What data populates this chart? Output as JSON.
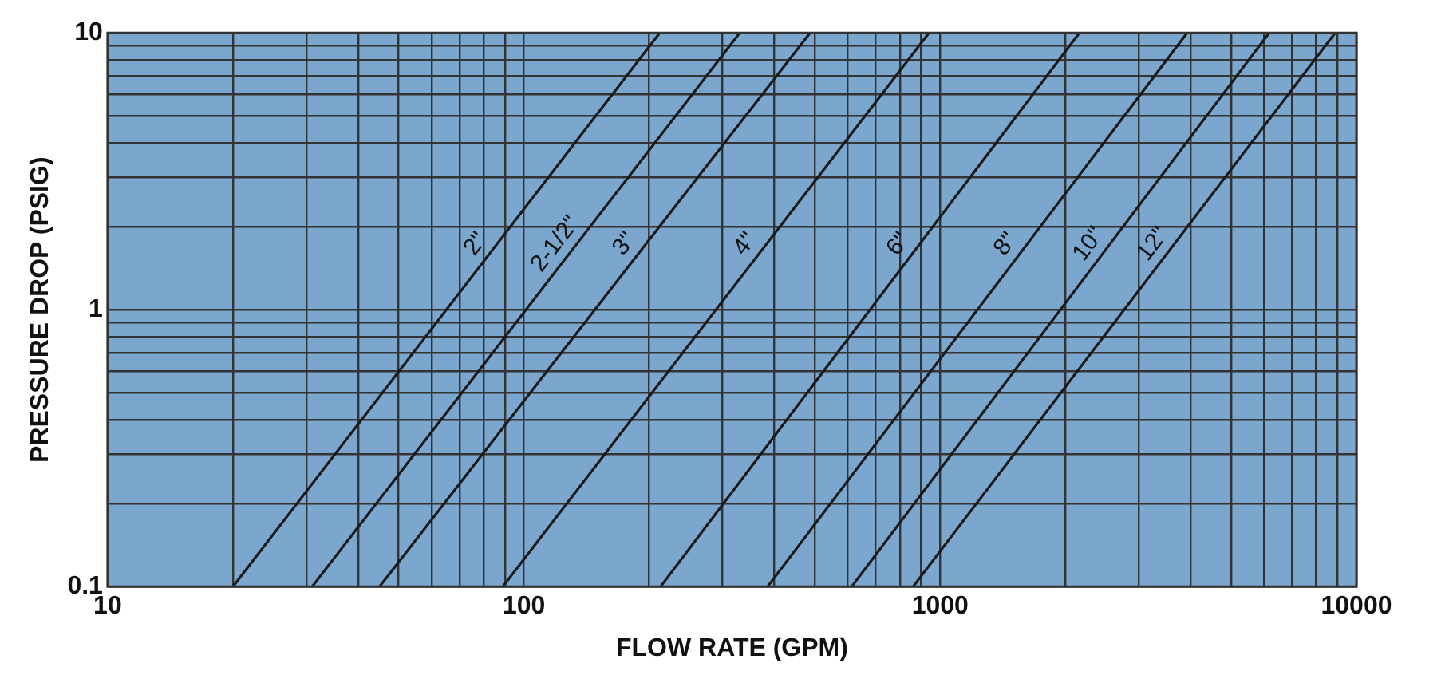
{
  "chart_data": {
    "type": "line",
    "xlabel": "FLOW RATE (GPM)",
    "ylabel": "PRESSURE DROP (PSIG)",
    "log": "xy",
    "grid": true,
    "legend": false,
    "marker": "none",
    "line_style": "solid",
    "xlim": [
      10,
      10000
    ],
    "ylim": [
      0.1,
      10
    ],
    "xticks": [
      10,
      {
        "value": 20,
        "label": null
      },
      {
        "value": 30,
        "label": null
      },
      {
        "value": 40,
        "label": null
      },
      {
        "value": 50,
        "label": null
      },
      {
        "value": 60,
        "label": null
      },
      {
        "value": 70,
        "label": null
      },
      {
        "value": 80,
        "label": null
      },
      {
        "value": 90,
        "label": null
      },
      100,
      {
        "value": 200,
        "label": null
      },
      {
        "value": 300,
        "label": null
      },
      {
        "value": 400,
        "label": null
      },
      {
        "value": 500,
        "label": null
      },
      {
        "value": 600,
        "label": null
      },
      {
        "value": 700,
        "label": null
      },
      {
        "value": 800,
        "label": null
      },
      {
        "value": 900,
        "label": null
      },
      1000,
      {
        "value": 2000,
        "label": null
      },
      {
        "value": 3000,
        "label": null
      },
      {
        "value": 4000,
        "label": null
      },
      {
        "value": 5000,
        "label": null
      },
      {
        "value": 6000,
        "label": null
      },
      {
        "value": 7000,
        "label": null
      },
      {
        "value": 8000,
        "label": null
      },
      {
        "value": 9000,
        "label": null
      },
      10000
    ],
    "yticks": [
      0.1,
      {
        "value": 0.2,
        "label": null
      },
      {
        "value": 0.3,
        "label": null
      },
      {
        "value": 0.4,
        "label": null
      },
      {
        "value": 0.5,
        "label": null
      },
      {
        "value": 0.6,
        "label": null
      },
      {
        "value": 0.7,
        "label": null
      },
      {
        "value": 0.8,
        "label": null
      },
      {
        "value": 0.9,
        "label": null
      },
      1,
      {
        "value": 2,
        "label": null
      },
      {
        "value": 3,
        "label": null
      },
      {
        "value": 4,
        "label": null
      },
      {
        "value": 5,
        "label": null
      },
      {
        "value": 6,
        "label": null
      },
      {
        "value": 7,
        "label": null
      },
      {
        "value": 8,
        "label": null
      },
      {
        "value": 9,
        "label": null
      },
      10
    ],
    "series": [
      {
        "name": "2\"",
        "color": "#1a1a1a",
        "x": [
          20,
          212
        ],
        "values": [
          0.1,
          10
        ]
      },
      {
        "name": "2-1/2\"",
        "color": "#1a1a1a",
        "x": [
          31,
          330
        ],
        "values": [
          0.1,
          10
        ]
      },
      {
        "name": "3\"",
        "color": "#1a1a1a",
        "x": [
          45,
          487
        ],
        "values": [
          0.1,
          10
        ]
      },
      {
        "name": "4\"",
        "color": "#1a1a1a",
        "x": [
          89,
          940
        ],
        "values": [
          0.1,
          10
        ]
      },
      {
        "name": "6\"",
        "color": "#1a1a1a",
        "x": [
          213,
          2160
        ],
        "values": [
          0.1,
          10
        ]
      },
      {
        "name": "8\"",
        "color": "#1a1a1a",
        "x": [
          385,
          3920
        ],
        "values": [
          0.1,
          10
        ]
      },
      {
        "name": "10\"",
        "color": "#1a1a1a",
        "x": [
          613,
          6170
        ],
        "values": [
          0.1,
          10
        ]
      },
      {
        "name": "12\"",
        "color": "#1a1a1a",
        "x": [
          861,
          8890
        ],
        "values": [
          0.1,
          10
        ]
      }
    ]
  }
}
